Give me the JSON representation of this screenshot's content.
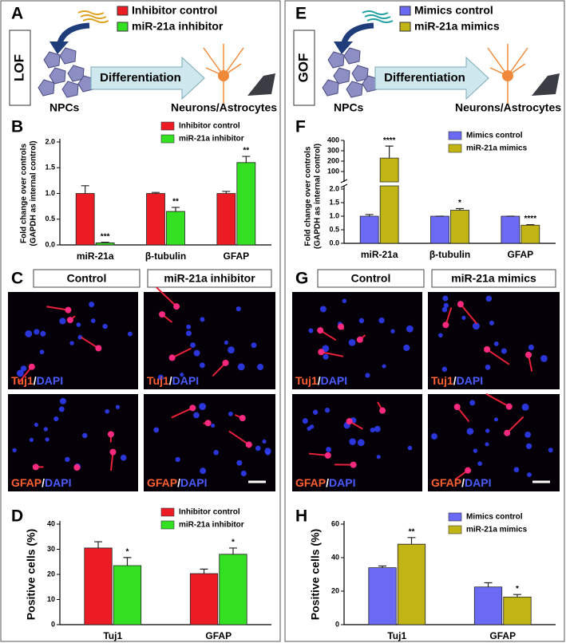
{
  "figure": {
    "left": {
      "letters": [
        "A",
        "B",
        "C",
        "D"
      ],
      "tag": "LOF",
      "legend": [
        {
          "name": "Inhibitor control",
          "color": "#ec1c24"
        },
        {
          "name": "miR-21a inhibitor",
          "color": "#33e022"
        }
      ],
      "arrow": "Differentiation",
      "source": "NPCs",
      "target": "Neurons/Astrocytes",
      "columns": [
        "Control",
        "miR-21a inhibitor"
      ],
      "stains": [
        {
          "marker": "Tuj1",
          "sep": "/",
          "counter": "DAPI"
        },
        {
          "marker": "GFAP",
          "sep": "/",
          "counter": "DAPI"
        }
      ]
    },
    "right": {
      "letters": [
        "E",
        "F",
        "G",
        "H"
      ],
      "tag": "GOF",
      "legend": [
        {
          "name": "Mimics control",
          "color": "#6a6af5"
        },
        {
          "name": "miR-21a mimics",
          "color": "#c0b515"
        }
      ],
      "arrow": "Differentiation",
      "source": "NPCs",
      "target": "Neurons/Astrocytes",
      "columns": [
        "Control",
        "miR-21a mimics"
      ],
      "stains": [
        {
          "marker": "Tuj1",
          "sep": "/",
          "counter": "DAPI"
        },
        {
          "marker": "GFAP",
          "sep": "/",
          "counter": "DAPI"
        }
      ]
    }
  },
  "chart_data": [
    {
      "type": "bar",
      "ylabel": [
        "Fold change over controls",
        "(GAPDH as internal control)"
      ],
      "categories": [
        "miR-21a",
        "β-tubulin",
        "GFAP"
      ],
      "series": [
        {
          "name": "Inhibitor control",
          "color": "#ec1c24",
          "values": [
            1.0,
            1.0,
            1.0
          ],
          "errors": [
            0.15,
            0.02,
            0.04
          ]
        },
        {
          "name": "miR-21a inhibitor",
          "color": "#33e022",
          "values": [
            0.04,
            0.65,
            1.6
          ],
          "errors": [
            0.01,
            0.08,
            0.12
          ],
          "annotations": [
            "***",
            "**",
            "**"
          ]
        }
      ],
      "ylim": [
        0,
        2.0
      ],
      "yticks": [
        {
          "value": 0,
          "label": "0.0"
        },
        {
          "value": 0.5,
          "label": "0.5"
        },
        {
          "value": 1.0,
          "label": "1.0"
        },
        {
          "value": 1.5,
          "label": "1.5"
        },
        {
          "value": 2.0,
          "label": "2.0"
        }
      ]
    },
    {
      "type": "bar",
      "ylabel": [
        "Positive cells (%)"
      ],
      "categories": [
        "Tuj1",
        "GFAP"
      ],
      "series": [
        {
          "name": "Inhibitor control",
          "color": "#ec1c24",
          "values": [
            30.5,
            20.3
          ],
          "errors": [
            2.5,
            1.8
          ]
        },
        {
          "name": "miR-21a inhibitor",
          "color": "#33e022",
          "values": [
            23.5,
            28
          ],
          "errors": [
            3.2,
            2.5
          ],
          "annotations": [
            "*",
            "*"
          ]
        }
      ],
      "ylim": [
        0,
        40
      ],
      "yticks": [
        0,
        10,
        20,
        30,
        40
      ]
    },
    {
      "type": "bar",
      "ylabel": [
        "Fold change over controls",
        "(GAPDH as internal control)"
      ],
      "categories": [
        "miR-21a",
        "β-tubulin",
        "GFAP"
      ],
      "series": [
        {
          "name": "Mimics control",
          "color": "#6a6af5",
          "values": [
            1.0,
            1.0,
            1.0
          ],
          "errors": [
            0.06,
            0,
            0
          ]
        },
        {
          "name": "miR-21a mimics",
          "color": "#c0b515",
          "values": [
            230,
            1.22,
            0.67
          ],
          "errors": [
            115,
            0.06,
            0.02
          ],
          "annotations": [
            "****",
            "*",
            "****"
          ]
        }
      ],
      "ylim": [
        0,
        2.0
      ],
      "yticks": [
        {
          "value": 0,
          "label": "0.0"
        },
        {
          "value": 0.5,
          "label": "0.5"
        },
        {
          "value": 1.0,
          "label": "1.0"
        },
        {
          "value": 1.5,
          "label": "1.5"
        },
        {
          "value": 2.0,
          "label": "2.0"
        }
      ],
      "axis_break": {
        "ylim": [
          0,
          400
        ],
        "yticks": [
          100,
          200,
          300,
          400
        ]
      }
    },
    {
      "type": "bar",
      "ylabel": [
        "Positive cells (%)"
      ],
      "categories": [
        "Tuj1",
        "GFAP"
      ],
      "series": [
        {
          "name": "Mimics control",
          "color": "#6a6af5",
          "values": [
            34,
            22.5
          ],
          "errors": [
            1,
            2.5
          ]
        },
        {
          "name": "miR-21a mimics",
          "color": "#c0b515",
          "values": [
            48,
            16.5
          ],
          "errors": [
            4,
            1.5
          ],
          "annotations": [
            "**",
            "*"
          ]
        }
      ],
      "ylim": [
        0,
        60
      ],
      "yticks": [
        0,
        20,
        40,
        60
      ]
    }
  ]
}
